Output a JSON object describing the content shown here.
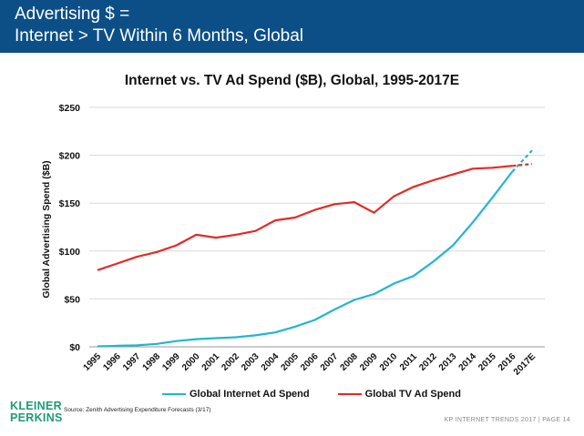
{
  "header": {
    "line1": "Advertising $ =",
    "line2": "Internet > TV Within 6 Months, Global"
  },
  "source": "Source: Zenith Advertising Expenditure Forecasts (3/17)",
  "logo": {
    "line1": "KLEINER",
    "line2": "PERKINS"
  },
  "footer": "KP INTERNET TRENDS 2017  |  PAGE 14",
  "colors": {
    "header_bg": "#0c4f86",
    "internet": "#22b6cf",
    "tv": "#e42a26",
    "logo": "#1e9a7a"
  },
  "chart_data": {
    "type": "line",
    "title": "Internet vs. TV Ad Spend ($B), Global, 1995-2017E",
    "xlabel": "",
    "ylabel": "Global Advertising Spend ($B)",
    "categories": [
      "1995",
      "1996",
      "1997",
      "1998",
      "1999",
      "2000",
      "2001",
      "2002",
      "2003",
      "2004",
      "2005",
      "2006",
      "2007",
      "2008",
      "2009",
      "2010",
      "2011",
      "2012",
      "2013",
      "2014",
      "2015",
      "2016",
      "2017E"
    ],
    "y_ticks": [
      "$0",
      "$50",
      "$100",
      "$150",
      "$200",
      "$250"
    ],
    "ylim": [
      0,
      250
    ],
    "grid": true,
    "legend_position": "bottom",
    "series": [
      {
        "name": "Global Internet Ad Spend",
        "color": "#22b6cf",
        "estimate_from_index": 21,
        "values": [
          0.5,
          1,
          1.5,
          3,
          6,
          8,
          9,
          10,
          12,
          15,
          21,
          28,
          39,
          49,
          55,
          66,
          74,
          89,
          106,
          130,
          156,
          183,
          205
        ]
      },
      {
        "name": "Global TV Ad Spend",
        "color": "#e42a26",
        "estimate_from_index": 21,
        "values": [
          80,
          87,
          94,
          99,
          106,
          117,
          114,
          117,
          121,
          132,
          135,
          143,
          149,
          151,
          140,
          157,
          167,
          174,
          180,
          186,
          187,
          189,
          191
        ]
      }
    ]
  }
}
